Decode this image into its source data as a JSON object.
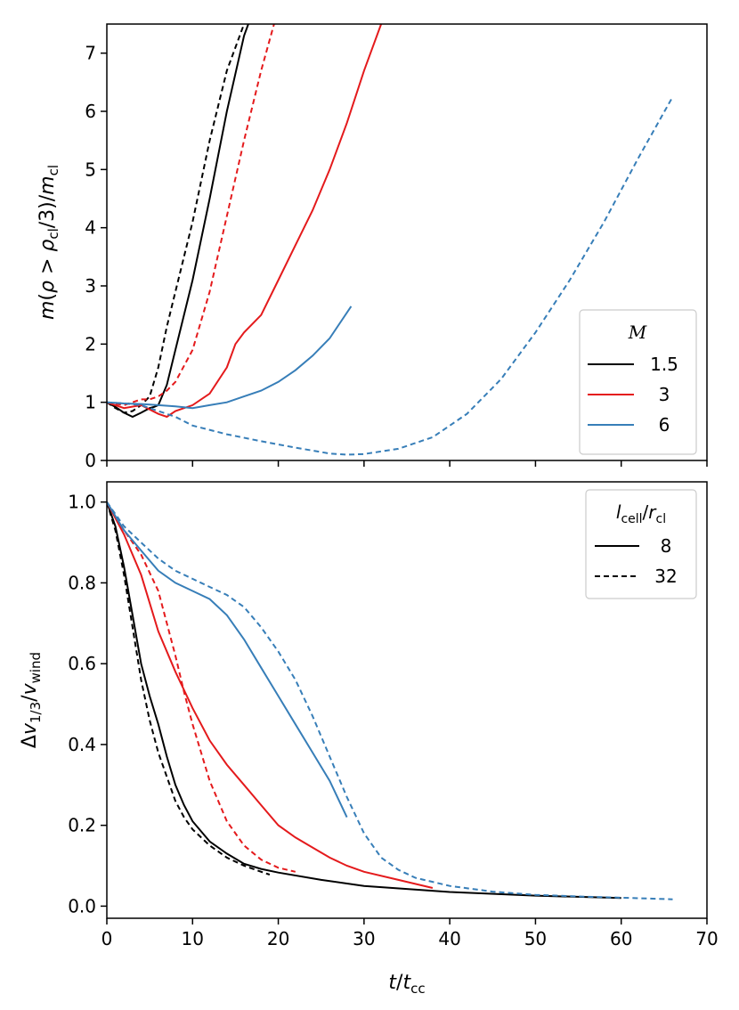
{
  "chart_data": [
    {
      "panel": "top",
      "type": "line",
      "ylabel_parts": {
        "m": "m",
        "rho": "ρ",
        "gt": " > ",
        "rho2": "ρ",
        "cl_sub": "cl",
        "div3": "/3)/",
        "m2": "m",
        "cl_sub2": "cl"
      },
      "ylabel_text": "m(ρ > ρcl/3)/mcl",
      "xlim": [
        0,
        70
      ],
      "ylim": [
        0,
        7.5
      ],
      "yticks": [
        "0",
        "1",
        "2",
        "3",
        "4",
        "5",
        "6",
        "7"
      ],
      "legend": {
        "title": "M",
        "entries": [
          {
            "label": "1.5",
            "color": "#000000"
          },
          {
            "label": "3",
            "color": "#e41a1c"
          },
          {
            "label": "6",
            "color": "#377eb8"
          }
        ]
      },
      "series": [
        {
          "name": "M=1.5, lcell/rcl=8",
          "color": "#000000",
          "dash": "solid",
          "x": [
            0,
            1,
            2,
            3,
            4,
            5,
            5.5,
            6,
            7,
            8,
            10,
            12,
            14,
            16,
            16.5
          ],
          "y": [
            1.0,
            0.92,
            0.82,
            0.75,
            0.82,
            0.9,
            0.92,
            0.95,
            1.3,
            1.9,
            3.1,
            4.5,
            6.0,
            7.3,
            7.5
          ]
        },
        {
          "name": "M=1.5, lcell/rcl=32",
          "color": "#000000",
          "dash": "dashed",
          "x": [
            0,
            1,
            2,
            3,
            4,
            5,
            6,
            7,
            8,
            10,
            12,
            14,
            16
          ],
          "y": [
            1.0,
            0.9,
            0.82,
            0.85,
            0.95,
            1.1,
            1.6,
            2.3,
            2.9,
            4.1,
            5.5,
            6.7,
            7.5
          ]
        },
        {
          "name": "M=3, lcell/rcl=8",
          "color": "#e41a1c",
          "dash": "solid",
          "x": [
            0,
            2,
            4,
            6,
            7,
            8,
            10,
            12,
            14,
            15,
            16,
            18,
            20,
            22,
            24,
            26,
            28,
            30,
            32
          ],
          "y": [
            1.0,
            0.9,
            0.95,
            0.8,
            0.75,
            0.85,
            0.95,
            1.15,
            1.6,
            2.0,
            2.2,
            2.5,
            3.1,
            3.7,
            4.3,
            5.0,
            5.8,
            6.7,
            7.5
          ]
        },
        {
          "name": "M=3, lcell/rcl=32",
          "color": "#e41a1c",
          "dash": "dashed",
          "x": [
            0,
            2,
            4,
            5,
            6,
            7,
            8,
            10,
            12,
            14,
            16,
            18,
            19.5
          ],
          "y": [
            1.0,
            0.95,
            1.05,
            1.05,
            1.1,
            1.2,
            1.35,
            1.9,
            2.9,
            4.2,
            5.5,
            6.7,
            7.5
          ]
        },
        {
          "name": "M=6, lcell/rcl=8",
          "color": "#377eb8",
          "dash": "solid",
          "x": [
            0,
            2,
            4,
            6,
            8,
            10,
            12,
            14,
            16,
            18,
            20,
            22,
            24,
            26,
            28.5
          ],
          "y": [
            1.0,
            0.98,
            0.97,
            0.95,
            0.93,
            0.9,
            0.95,
            1.0,
            1.1,
            1.2,
            1.35,
            1.55,
            1.8,
            2.1,
            2.65
          ]
        },
        {
          "name": "M=6, lcell/rcl=32",
          "color": "#377eb8",
          "dash": "dashed",
          "x": [
            0,
            2,
            4,
            6,
            8,
            10,
            14,
            18,
            22,
            26,
            28,
            30,
            34,
            38,
            42,
            46,
            50,
            54,
            58,
            62,
            66
          ],
          "y": [
            1.0,
            0.98,
            0.95,
            0.85,
            0.75,
            0.6,
            0.45,
            0.33,
            0.22,
            0.12,
            0.1,
            0.11,
            0.2,
            0.4,
            0.8,
            1.4,
            2.2,
            3.1,
            4.1,
            5.2,
            6.25
          ]
        }
      ]
    },
    {
      "panel": "bottom",
      "type": "line",
      "ylabel_text": "Δv1/3/vwind",
      "xlabel_text": "t/tcc",
      "xlim": [
        0,
        70
      ],
      "ylim": [
        -0.03,
        1.05
      ],
      "xticks": [
        "0",
        "10",
        "20",
        "30",
        "40",
        "50",
        "60",
        "70"
      ],
      "yticks": [
        "0.0",
        "0.2",
        "0.4",
        "0.6",
        "0.8",
        "1.0"
      ],
      "legend": {
        "title": "lcell/rcl",
        "entries": [
          {
            "label": "8",
            "dash": "solid"
          },
          {
            "label": "32",
            "dash": "dashed"
          }
        ]
      },
      "series": [
        {
          "name": "M=1.5, lcell/rcl=8",
          "color": "#000000",
          "dash": "solid",
          "x": [
            0,
            1,
            2,
            3,
            4,
            5,
            6,
            7,
            8,
            9,
            10,
            12,
            14,
            16,
            18,
            20,
            25,
            30,
            40,
            50,
            60
          ],
          "y": [
            1.0,
            0.94,
            0.84,
            0.72,
            0.6,
            0.52,
            0.45,
            0.37,
            0.3,
            0.25,
            0.21,
            0.16,
            0.13,
            0.105,
            0.092,
            0.083,
            0.065,
            0.05,
            0.035,
            0.026,
            0.02
          ]
        },
        {
          "name": "M=1.5, lcell/rcl=32",
          "color": "#000000",
          "dash": "dashed",
          "x": [
            0,
            1,
            2,
            3,
            4,
            5,
            6,
            7,
            8,
            9,
            10,
            12,
            14,
            16,
            18,
            19
          ],
          "y": [
            1.0,
            0.93,
            0.82,
            0.69,
            0.56,
            0.46,
            0.38,
            0.32,
            0.26,
            0.22,
            0.19,
            0.15,
            0.12,
            0.1,
            0.085,
            0.078
          ]
        },
        {
          "name": "M=3, lcell/rcl=8",
          "color": "#e41a1c",
          "dash": "solid",
          "x": [
            0,
            2,
            4,
            6,
            8,
            10,
            12,
            14,
            16,
            18,
            20,
            22,
            24,
            26,
            28,
            30,
            34,
            38
          ],
          "y": [
            1.0,
            0.92,
            0.82,
            0.68,
            0.58,
            0.49,
            0.41,
            0.35,
            0.3,
            0.25,
            0.2,
            0.17,
            0.145,
            0.12,
            0.1,
            0.085,
            0.065,
            0.045
          ]
        },
        {
          "name": "M=3, lcell/rcl=32",
          "color": "#e41a1c",
          "dash": "dashed",
          "x": [
            0,
            2,
            4,
            6,
            7,
            8,
            9,
            10,
            11,
            12,
            14,
            16,
            18,
            20,
            22
          ],
          "y": [
            1.0,
            0.93,
            0.87,
            0.78,
            0.7,
            0.62,
            0.53,
            0.45,
            0.38,
            0.31,
            0.21,
            0.15,
            0.115,
            0.095,
            0.085
          ]
        },
        {
          "name": "M=6, lcell/rcl=8",
          "color": "#377eb8",
          "dash": "solid",
          "x": [
            0,
            2,
            4,
            6,
            8,
            10,
            12,
            14,
            16,
            18,
            20,
            22,
            24,
            26,
            28
          ],
          "y": [
            1.0,
            0.93,
            0.88,
            0.83,
            0.8,
            0.78,
            0.76,
            0.72,
            0.66,
            0.59,
            0.52,
            0.45,
            0.38,
            0.31,
            0.22
          ]
        },
        {
          "name": "M=6, lcell/rcl=32",
          "color": "#377eb8",
          "dash": "dashed",
          "x": [
            0,
            2,
            4,
            6,
            8,
            10,
            12,
            14,
            16,
            18,
            20,
            22,
            24,
            26,
            28,
            30,
            32,
            34,
            36,
            40,
            45,
            50,
            55,
            60,
            66
          ],
          "y": [
            1.0,
            0.94,
            0.9,
            0.86,
            0.83,
            0.81,
            0.79,
            0.77,
            0.74,
            0.69,
            0.63,
            0.56,
            0.47,
            0.37,
            0.27,
            0.18,
            0.12,
            0.09,
            0.07,
            0.05,
            0.036,
            0.028,
            0.024,
            0.021,
            0.017
          ]
        }
      ]
    }
  ]
}
